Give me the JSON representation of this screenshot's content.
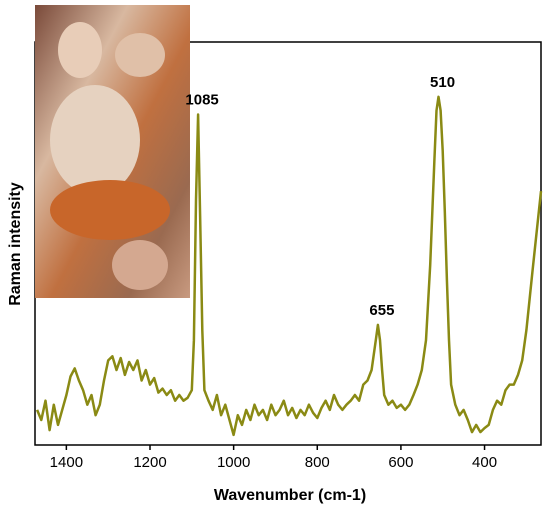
{
  "chart_data": {
    "type": "line",
    "xlabel": "Wavenumber (cm-1)",
    "ylabel": "Raman intensity",
    "xlim": [
      1475,
      265
    ],
    "ylim": [
      0,
      100
    ],
    "xticks": [
      1400,
      1200,
      1000,
      800,
      600,
      400
    ],
    "color": "#8a8a14",
    "annotations": [
      {
        "label": "1085",
        "x": 1085
      },
      {
        "label": "655",
        "x": 655
      },
      {
        "label": "510",
        "x": 510
      }
    ],
    "x": [
      1470,
      1460,
      1450,
      1440,
      1430,
      1420,
      1410,
      1400,
      1390,
      1380,
      1370,
      1360,
      1350,
      1340,
      1330,
      1320,
      1310,
      1300,
      1290,
      1280,
      1270,
      1260,
      1250,
      1240,
      1230,
      1220,
      1210,
      1200,
      1190,
      1180,
      1170,
      1160,
      1150,
      1140,
      1130,
      1120,
      1110,
      1100,
      1095,
      1090,
      1085,
      1080,
      1075,
      1070,
      1060,
      1050,
      1040,
      1030,
      1020,
      1010,
      1000,
      990,
      980,
      970,
      960,
      950,
      940,
      930,
      920,
      910,
      900,
      890,
      880,
      870,
      860,
      850,
      840,
      830,
      820,
      810,
      800,
      790,
      780,
      770,
      760,
      750,
      740,
      730,
      720,
      710,
      700,
      690,
      680,
      670,
      665,
      660,
      655,
      650,
      645,
      640,
      630,
      620,
      610,
      600,
      590,
      580,
      570,
      560,
      550,
      540,
      530,
      520,
      515,
      510,
      505,
      500,
      495,
      490,
      485,
      480,
      470,
      460,
      450,
      440,
      430,
      420,
      410,
      400,
      390,
      380,
      370,
      360,
      350,
      340,
      330,
      320,
      310,
      300,
      285,
      265
    ],
    "values": [
      8.7,
      6.2,
      11,
      3.7,
      10,
      5,
      8.7,
      12.4,
      17,
      19,
      16,
      13.6,
      10,
      12.4,
      7.4,
      10,
      16,
      21,
      22,
      18.6,
      21.6,
      17.4,
      20.6,
      18.6,
      21,
      16,
      18.6,
      15,
      16.6,
      13,
      14,
      12.4,
      13.6,
      11,
      12.4,
      11,
      11.7,
      13.6,
      26,
      60.8,
      82,
      55.8,
      28.5,
      13.6,
      11,
      8.7,
      12.4,
      7.4,
      10,
      6.2,
      2.5,
      7.4,
      5,
      8.7,
      6.2,
      10,
      7.4,
      8.7,
      6.2,
      10,
      7.4,
      8.7,
      11,
      7.4,
      9.2,
      6.7,
      8.7,
      7.4,
      10,
      8,
      6.7,
      9.2,
      11,
      8.7,
      12.4,
      10,
      8.7,
      10,
      11,
      12.4,
      11,
      15,
      16,
      18.6,
      22.3,
      26,
      29.8,
      26,
      18.6,
      12.4,
      10,
      11,
      9.2,
      10,
      8.7,
      10,
      12.4,
      15,
      18.6,
      26,
      44.7,
      70.7,
      83,
      86.4,
      83,
      73,
      58,
      41,
      26,
      15,
      10,
      7.4,
      8.7,
      6.2,
      3.2,
      5,
      3.2,
      4.2,
      5,
      8.7,
      11,
      10,
      13.6,
      15,
      15,
      17.4,
      21,
      28.5,
      43.4,
      63
    ]
  }
}
